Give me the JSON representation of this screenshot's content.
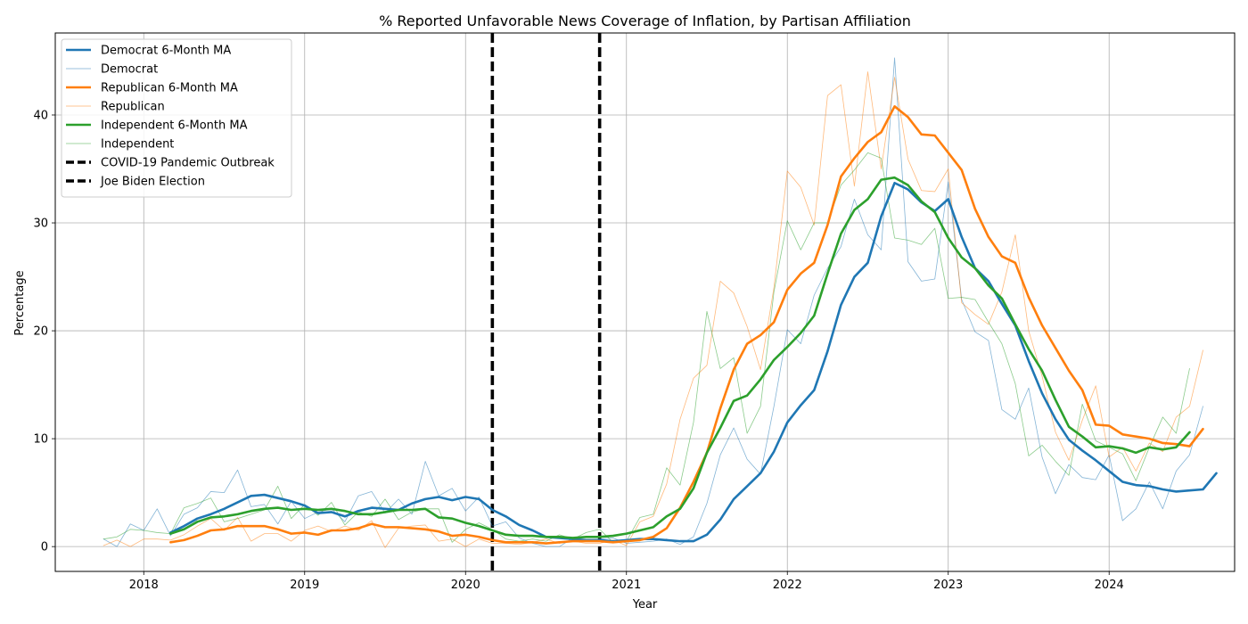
{
  "chart_data": {
    "type": "line",
    "title": "% Reported Unfavorable News Coverage of Inflation, by Partisan Affiliation",
    "xlabel": "Year",
    "ylabel": "Percentage",
    "xlim": [
      2017.45,
      2024.78
    ],
    "ylim": [
      -2.3,
      47.6
    ],
    "xticks": [
      2018,
      2019,
      2020,
      2021,
      2022,
      2023,
      2024
    ],
    "xtick_labels": [
      "2018",
      "2019",
      "2020",
      "2021",
      "2022",
      "2023",
      "2024"
    ],
    "yticks": [
      0,
      10,
      20,
      30,
      40
    ],
    "ytick_labels": [
      "0",
      "10",
      "20",
      "30",
      "40"
    ],
    "grid": true,
    "legend_position": "top-left",
    "series": [
      {
        "name": "Democrat 6-Month MA",
        "color": "#1f77b4",
        "style": "ma",
        "start": "2018-03",
        "values": [
          1.3,
          1.9,
          2.6,
          3.0,
          3.5,
          4.1,
          4.7,
          4.8,
          4.5,
          4.2,
          3.8,
          3.1,
          3.2,
          2.8,
          3.3,
          3.6,
          3.5,
          3.4,
          4.0,
          4.4,
          4.6,
          4.3,
          4.6,
          4.4,
          3.4,
          2.8,
          2.0,
          1.5,
          0.9,
          0.8,
          0.7,
          0.6,
          0.6,
          0.5,
          0.6,
          0.7,
          0.7,
          0.6,
          0.5,
          0.5,
          1.1,
          2.5,
          4.4,
          5.6,
          6.8,
          8.8,
          11.5,
          13.1,
          14.5,
          18.1,
          22.4,
          25.0,
          26.3,
          30.6,
          33.7,
          33.1,
          31.9,
          31.1,
          32.2,
          28.7,
          25.8,
          24.6,
          22.5,
          20.5,
          17.2,
          14.2,
          11.8,
          9.9,
          8.9,
          8.0,
          7.0,
          6.0,
          5.7,
          5.6,
          5.3,
          5.1,
          5.2,
          5.3,
          6.8
        ]
      },
      {
        "name": "Democrat",
        "color": "#1f77b4",
        "style": "raw",
        "start": "2017-10",
        "values": [
          0.7,
          0.0,
          2.1,
          1.5,
          3.5,
          1.0,
          3.0,
          3.6,
          5.1,
          5.0,
          7.1,
          3.7,
          3.9,
          2.1,
          4.2,
          2.6,
          3.2,
          3.5,
          2.3,
          4.7,
          5.1,
          3.1,
          4.4,
          3.0,
          7.9,
          4.7,
          5.4,
          3.3,
          4.6,
          1.9,
          2.3,
          0.8,
          0.3,
          0.0,
          0.0,
          0.8,
          0.6,
          0.7,
          0.8,
          0.3,
          0.4,
          0.5,
          0.7,
          0.2,
          0.9,
          4.0,
          8.5,
          11.0,
          8.1,
          6.7,
          13.0,
          20.1,
          18.8,
          23.3,
          25.8,
          27.8,
          32.2,
          28.9,
          27.5,
          45.3,
          26.4,
          24.6,
          24.8,
          33.8,
          22.9,
          19.9,
          19.1,
          12.7,
          11.8,
          14.7,
          8.3,
          4.9,
          7.6,
          6.4,
          6.2,
          8.5,
          2.4,
          3.5,
          6.0,
          3.5,
          7.0,
          8.5,
          13.0
        ]
      },
      {
        "name": "Republican 6-Month MA",
        "color": "#ff7f0e",
        "style": "ma",
        "start": "2018-03",
        "values": [
          0.4,
          0.6,
          1.0,
          1.5,
          1.6,
          1.9,
          1.9,
          1.9,
          1.6,
          1.2,
          1.3,
          1.1,
          1.5,
          1.5,
          1.7,
          2.1,
          1.8,
          1.8,
          1.7,
          1.6,
          1.4,
          1.0,
          1.1,
          0.9,
          0.6,
          0.4,
          0.4,
          0.4,
          0.3,
          0.4,
          0.5,
          0.5,
          0.5,
          0.4,
          0.5,
          0.6,
          0.9,
          1.7,
          3.6,
          6.0,
          8.7,
          12.8,
          16.4,
          18.8,
          19.6,
          20.8,
          23.8,
          25.3,
          26.3,
          29.8,
          34.3,
          36.0,
          37.5,
          38.4,
          40.8,
          39.8,
          38.2,
          38.1,
          36.5,
          34.9,
          31.3,
          28.7,
          26.9,
          26.3,
          23.1,
          20.5,
          18.4,
          16.3,
          14.5,
          11.3,
          11.2,
          10.4,
          10.2,
          10.0,
          9.6,
          9.5,
          9.3,
          10.9
        ]
      },
      {
        "name": "Republican",
        "color": "#ff7f0e",
        "style": "raw",
        "start": "2017-10",
        "values": [
          0.1,
          0.6,
          0.0,
          0.7,
          0.7,
          0.6,
          1.1,
          1.9,
          2.6,
          1.5,
          2.7,
          0.5,
          1.2,
          1.2,
          0.5,
          1.5,
          1.9,
          1.4,
          1.9,
          1.5,
          2.4,
          -0.1,
          1.7,
          1.9,
          2.0,
          0.5,
          0.7,
          0.0,
          0.7,
          0.3,
          0.3,
          0.2,
          0.4,
          0.7,
          0.3,
          0.5,
          0.3,
          0.3,
          0.6,
          0.1,
          2.3,
          2.8,
          5.8,
          11.8,
          15.6,
          16.8,
          24.6,
          23.5,
          20.4,
          16.4,
          24.0,
          34.8,
          33.3,
          29.8,
          41.8,
          42.8,
          33.4,
          44.0,
          35.0,
          43.5,
          35.9,
          33.0,
          32.9,
          35.0,
          22.6,
          21.5,
          20.6,
          23.6,
          28.9,
          20.0,
          15.8,
          10.6,
          8.0,
          11.7,
          14.9,
          8.3,
          9.2,
          7.0,
          9.6,
          8.8,
          12.0,
          13.0,
          18.2
        ]
      },
      {
        "name": "Independent 6-Month MA",
        "color": "#2ca02c",
        "style": "ma",
        "start": "2018-03",
        "values": [
          1.2,
          1.6,
          2.3,
          2.7,
          2.8,
          3.0,
          3.3,
          3.5,
          3.6,
          3.4,
          3.5,
          3.4,
          3.5,
          3.3,
          3.0,
          3.0,
          3.2,
          3.4,
          3.4,
          3.5,
          2.7,
          2.6,
          2.2,
          1.9,
          1.5,
          1.1,
          1.0,
          1.0,
          0.9,
          0.9,
          0.8,
          0.9,
          0.9,
          1.0,
          1.2,
          1.5,
          1.8,
          2.8,
          3.5,
          5.4,
          8.7,
          11.0,
          13.5,
          14.0,
          15.5,
          17.3,
          18.5,
          19.8,
          21.4,
          25.3,
          29.0,
          31.2,
          32.2,
          34.0,
          34.2,
          33.5,
          32.0,
          31.0,
          28.6,
          26.8,
          25.8,
          24.2,
          23.0,
          20.6,
          18.3,
          16.3,
          13.6,
          11.1,
          10.2,
          9.2,
          9.3,
          9.1,
          8.7,
          9.2,
          9.0,
          9.2,
          10.6
        ]
      },
      {
        "name": "Independent",
        "color": "#2ca02c",
        "style": "raw",
        "start": "2017-10",
        "values": [
          0.7,
          0.9,
          1.6,
          1.5,
          1.3,
          1.2,
          3.6,
          4.0,
          4.5,
          2.3,
          2.6,
          3.0,
          3.4,
          5.6,
          2.6,
          3.9,
          2.9,
          4.1,
          2.0,
          3.2,
          2.8,
          4.4,
          2.5,
          3.2,
          3.5,
          3.5,
          0.4,
          1.6,
          2.2,
          1.6,
          0.7,
          0.5,
          0.7,
          0.5,
          1.1,
          0.7,
          1.3,
          1.6,
          0.4,
          0.5,
          2.7,
          3.0,
          7.3,
          5.7,
          11.5,
          21.8,
          16.5,
          17.5,
          10.5,
          13.0,
          23.6,
          30.2,
          27.5,
          30.0,
          30.0,
          33.5,
          34.9,
          36.5,
          36.0,
          28.6,
          28.4,
          28.0,
          29.5,
          23.0,
          23.1,
          22.9,
          20.8,
          18.8,
          15.1,
          8.4,
          9.4,
          7.9,
          6.6,
          13.2,
          9.8,
          9.2,
          8.6,
          6.1,
          9.2,
          12.0,
          10.5,
          16.5
        ]
      }
    ],
    "vlines": [
      {
        "name": "COVID-19 Pandemic Outbreak",
        "x": "2020-03",
        "color": "#000000"
      },
      {
        "name": "Joe Biden Election",
        "x": "2020-11",
        "color": "#000000"
      }
    ]
  }
}
